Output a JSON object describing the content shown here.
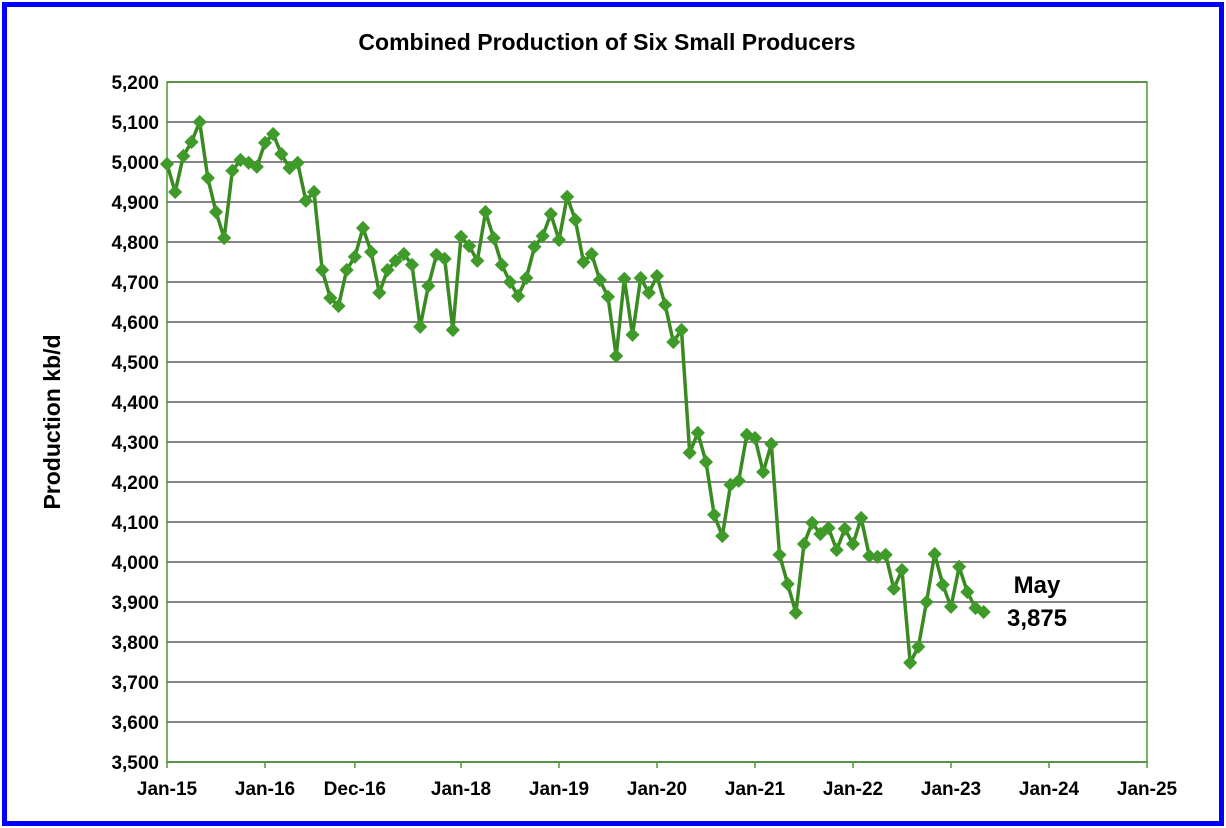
{
  "chart_data": {
    "type": "line",
    "title": "Combined Production of Six Small Producers",
    "xlabel": "",
    "ylabel": "Production kb/d",
    "ylim": [
      3500,
      5200
    ],
    "ytick_step": 100,
    "yticks": [
      "3,500",
      "3,600",
      "3,700",
      "3,800",
      "3,900",
      "4,000",
      "4,100",
      "4,200",
      "4,300",
      "4,400",
      "4,500",
      "4,600",
      "4,700",
      "4,800",
      "4,900",
      "5,000",
      "5,100",
      "5,200"
    ],
    "xlim": [
      "2015-01",
      "2025-01"
    ],
    "xticks": [
      {
        "label": "Jan-15",
        "date": "2015-01"
      },
      {
        "label": "Jan-16",
        "date": "2016-01"
      },
      {
        "label": "Dec-16",
        "date": "2016-12"
      },
      {
        "label": "Jan-18",
        "date": "2018-01"
      },
      {
        "label": "Jan-19",
        "date": "2019-01"
      },
      {
        "label": "Jan-20",
        "date": "2020-01"
      },
      {
        "label": "Jan-21",
        "date": "2021-01"
      },
      {
        "label": "Jan-22",
        "date": "2022-01"
      },
      {
        "label": "Jan-23",
        "date": "2023-01"
      },
      {
        "label": "Jan-24",
        "date": "2024-01"
      },
      {
        "label": "Jan-25",
        "date": "2025-01"
      }
    ],
    "grid": "horizontal",
    "line_color": "#3a8a22",
    "marker_color": "#3f9a2a",
    "plot_border_color": "#4a9a30",
    "frame_color": "#0000ff",
    "annotation": {
      "line1": "May",
      "line2": "3,875"
    },
    "start": "2015-01",
    "series": [
      {
        "values": [
          4995,
          4925,
          5015,
          5050,
          5100,
          4960,
          4875,
          4810,
          4978,
          5005,
          4998,
          4988,
          5048,
          5070,
          5020,
          4985,
          4998,
          4903,
          4925,
          4730,
          4660,
          4640,
          4730,
          4763,
          4835,
          4775,
          4673,
          4730,
          4753,
          4770,
          4743,
          4588,
          4690,
          4768,
          4758,
          4580,
          4813,
          4790,
          4753,
          4875,
          4810,
          4743,
          4700,
          4665,
          4710,
          4788,
          4815,
          4870,
          4805,
          4913,
          4855,
          4750,
          4770,
          4705,
          4663,
          4515,
          4708,
          4568,
          4710,
          4673,
          4715,
          4643,
          4550,
          4580,
          4273,
          4323,
          4250,
          4118,
          4065,
          4193,
          4203,
          4318,
          4310,
          4225,
          4295,
          4018,
          3945,
          3873,
          4045,
          4098,
          4070,
          4085,
          4030,
          4083,
          4045,
          4110,
          4015,
          4013,
          4018,
          3933,
          3980,
          3748,
          3788,
          3900,
          4020,
          3943,
          3888,
          3988,
          3925,
          3885,
          3875
        ]
      }
    ]
  }
}
